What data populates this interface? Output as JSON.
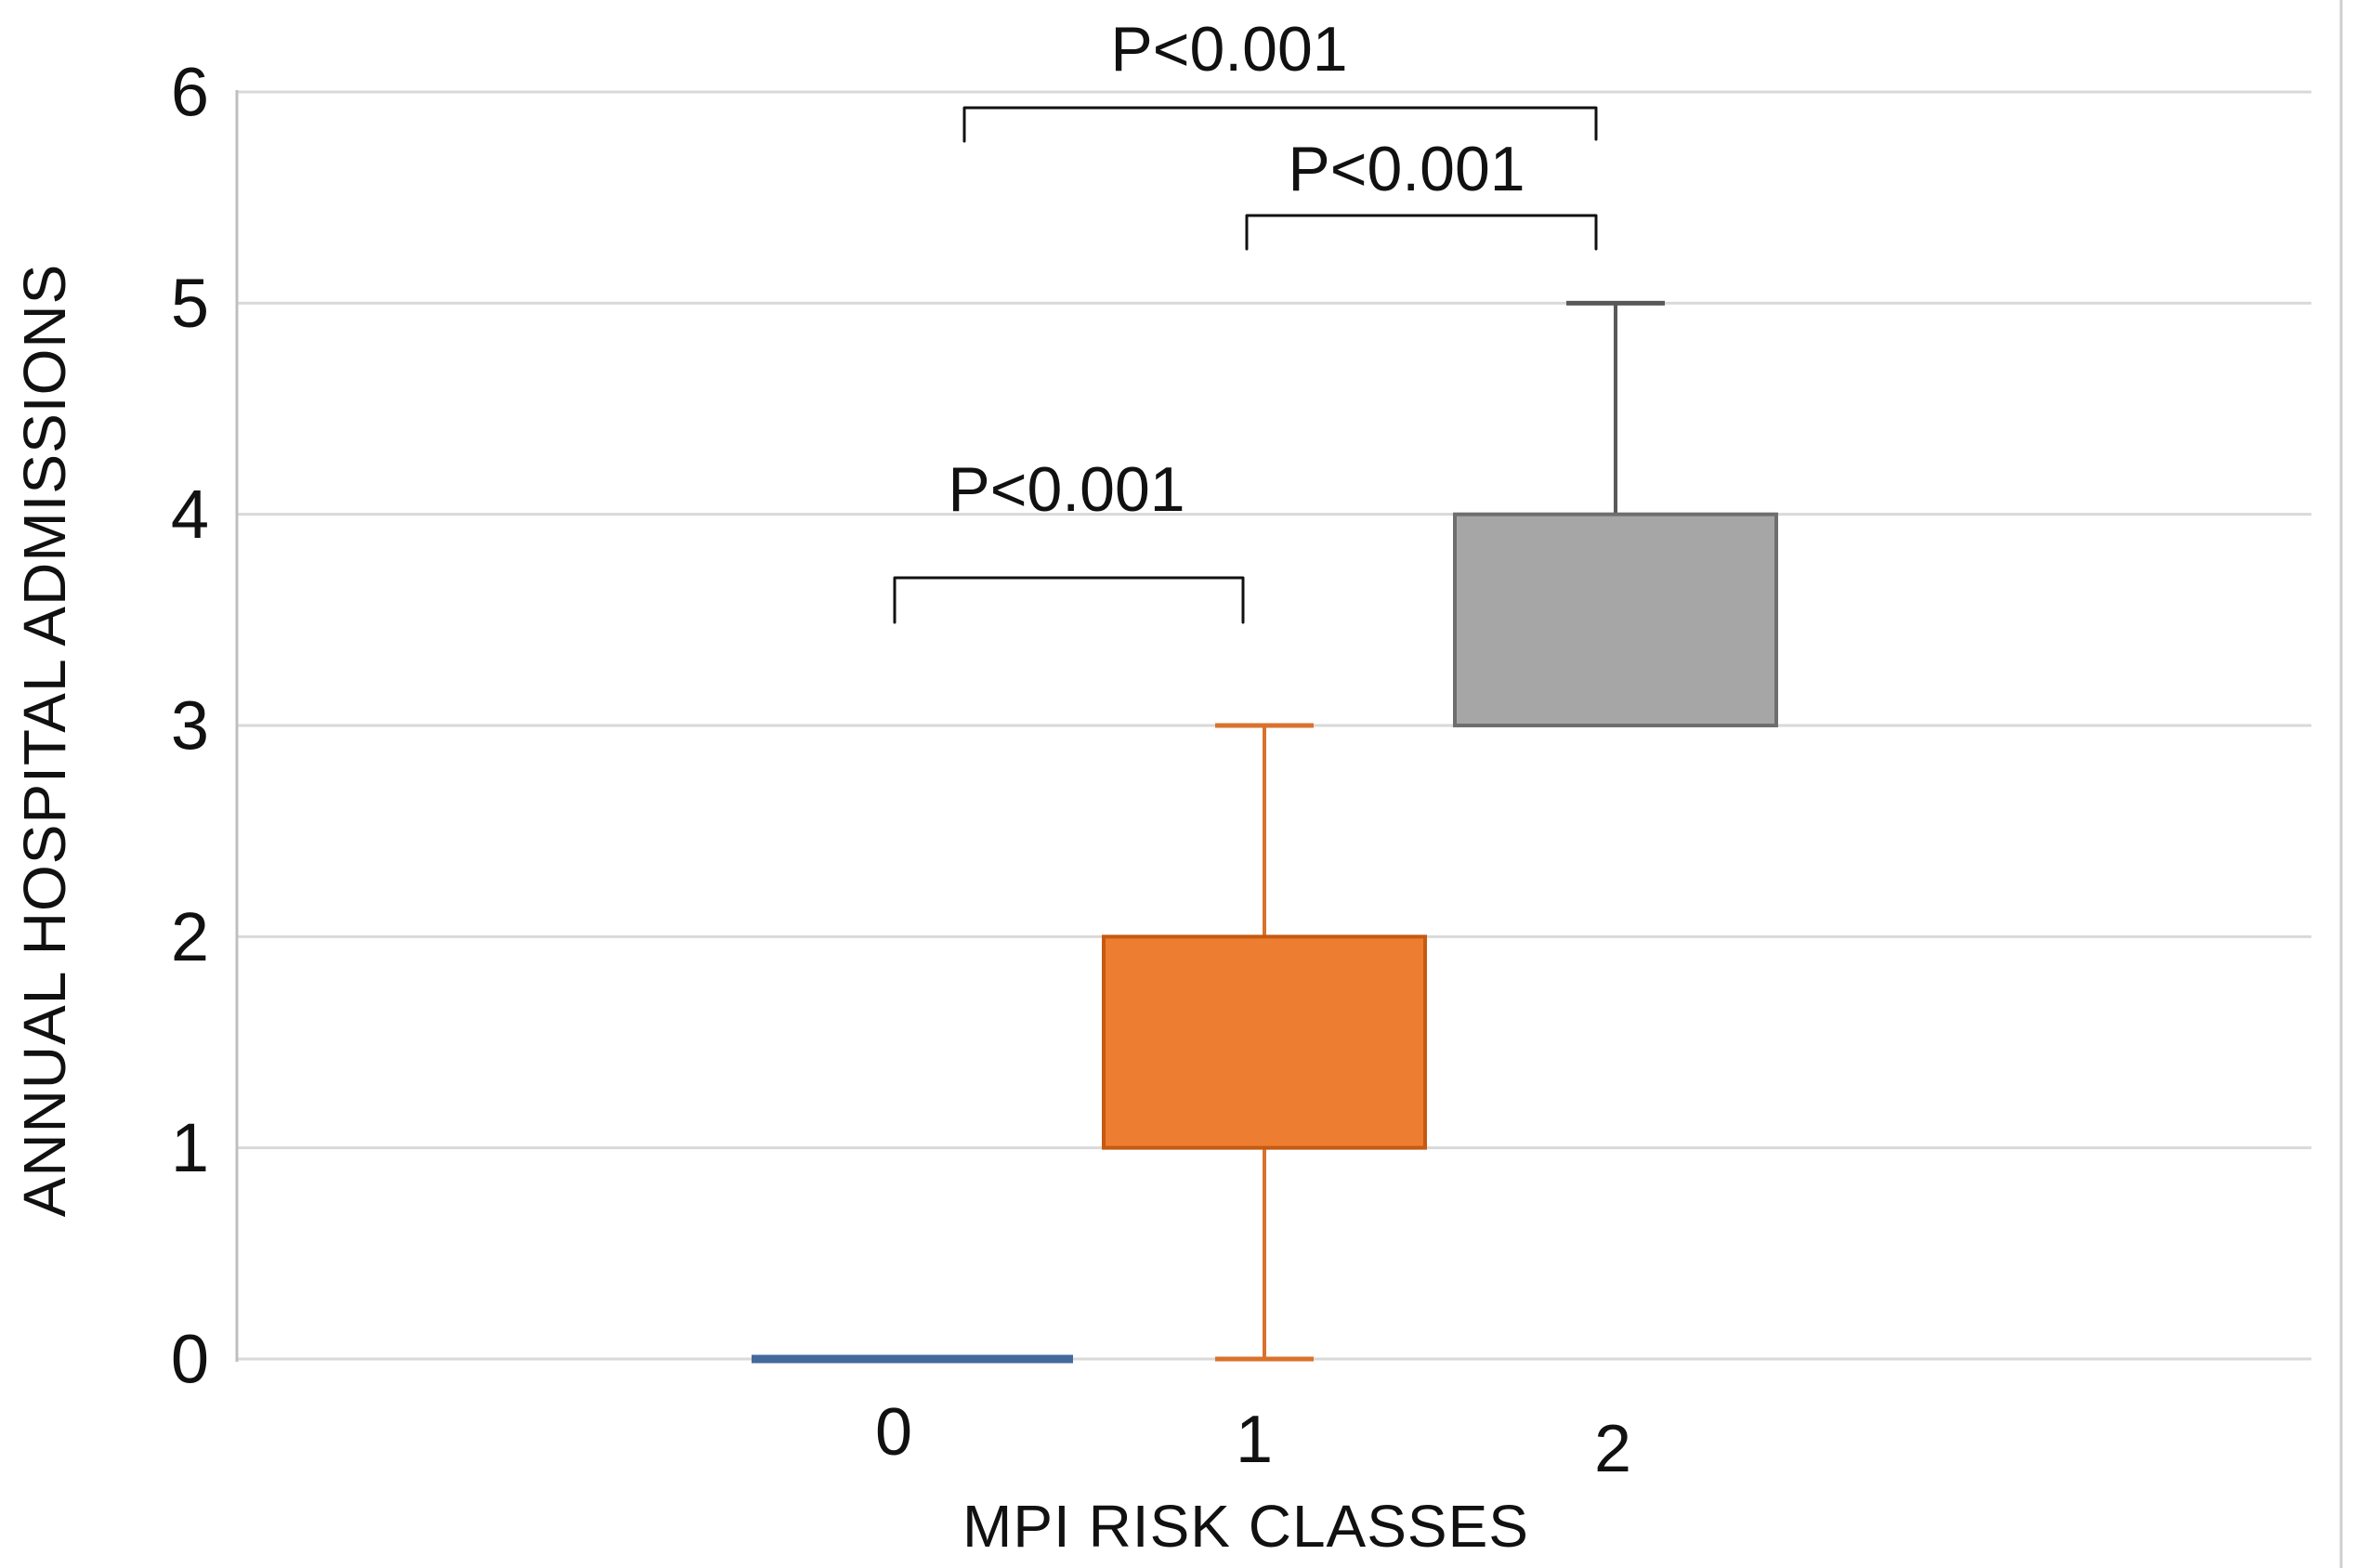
{
  "figure": {
    "background": "#FFFFFF",
    "right_edge_line_color": "#CFCFCF"
  },
  "chart_data": {
    "type": "box",
    "title": "",
    "xlabel": "MPI RISK CLASSES",
    "ylabel": "ANNUAL HOSPITAL ADMISSIONS",
    "ylim": [
      0,
      6
    ],
    "y_ticks": [
      0,
      1,
      2,
      3,
      4,
      5,
      6
    ],
    "categories": [
      "0",
      "1",
      "2"
    ],
    "grid": true,
    "gridline_color": "#D9D9D9",
    "axis_line_color": "#BFBFBF",
    "text_color": "#111111",
    "bracket_color": "#111111",
    "boxes": [
      {
        "category": "0",
        "min": 0,
        "q1": 0,
        "q3": 0,
        "max": 0,
        "fill": "#44699C",
        "border": "#44699C",
        "whisker": "#44699C"
      },
      {
        "category": "1",
        "min": 0,
        "q1": 1,
        "q3": 2,
        "max": 3,
        "fill": "#ED7D31",
        "border": "#C55A11",
        "whisker": "#D9722C"
      },
      {
        "category": "2",
        "min": 3,
        "q1": 3,
        "q3": 4,
        "max": 5,
        "fill": "#A6A6A6",
        "border": "#6E6E6E",
        "whisker": "#595959"
      }
    ],
    "annotations": [
      {
        "label": "P<0.001",
        "between": [
          "0",
          "2"
        ]
      },
      {
        "label": "P<0.001",
        "between": [
          "1",
          "2"
        ]
      },
      {
        "label": "P<0.001",
        "between": [
          "0",
          "1"
        ]
      }
    ]
  }
}
